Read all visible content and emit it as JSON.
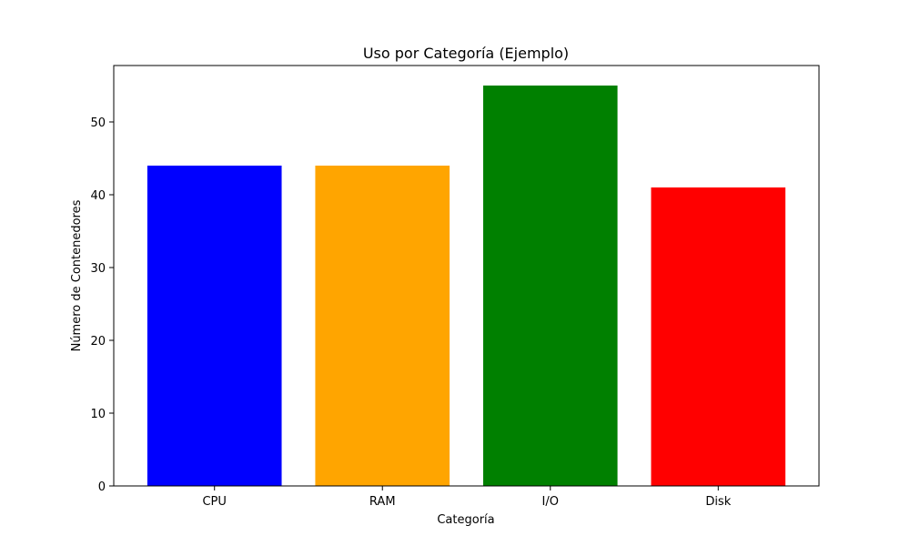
{
  "chart_data": {
    "type": "bar",
    "title": "Uso por Categoría (Ejemplo)",
    "xlabel": "Categoría",
    "ylabel": "Número de Contenedores",
    "categories": [
      "CPU",
      "RAM",
      "I/O",
      "Disk"
    ],
    "values": [
      44,
      44,
      55,
      41
    ],
    "colors": [
      "#0000ff",
      "#ffa500",
      "#008000",
      "#ff0000"
    ],
    "ylim": [
      0,
      57.75
    ],
    "yticks": [
      0,
      10,
      20,
      30,
      40,
      50
    ],
    "grid": false,
    "legend": "none"
  }
}
